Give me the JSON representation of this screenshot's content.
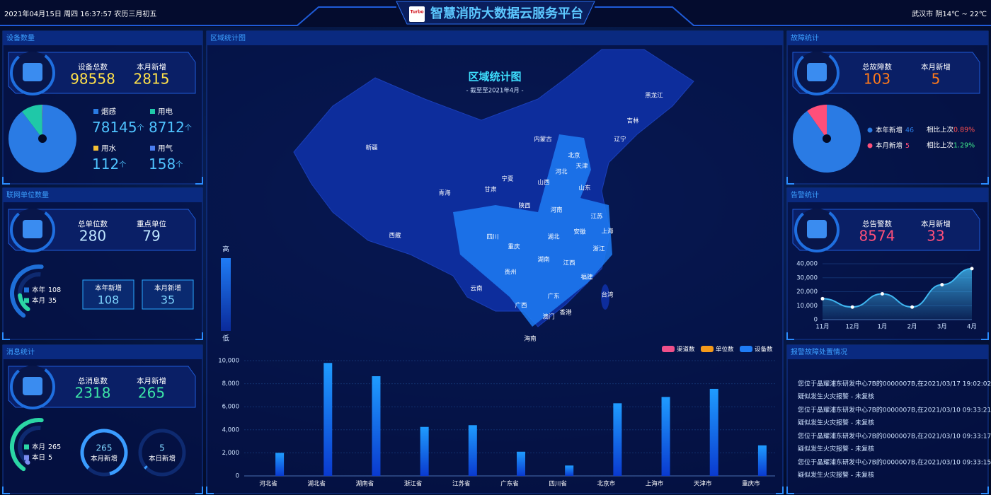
{
  "header": {
    "datetime": "2021年04月15日 周四 16:37:57 农历三月初五",
    "logo": "Turbo",
    "title": "智慧消防大数据云服务平台",
    "weather": "武汉市 阴14℃ ~ 22℃"
  },
  "devices": {
    "title": "设备数量",
    "total_label": "设备总数",
    "total": 98558,
    "new_label": "本月新增",
    "new": 2815,
    "unit": "个",
    "items": [
      {
        "name": "烟感",
        "value": 78145,
        "color": "#2a7be4"
      },
      {
        "name": "用电",
        "value": 8712,
        "color": "#1fc8a8"
      },
      {
        "name": "用水",
        "value": 112,
        "color": "#f5c035"
      },
      {
        "name": "用气",
        "value": 158,
        "color": "#4a7df0"
      }
    ]
  },
  "units": {
    "title": "联网单位数量",
    "total_label": "总单位数",
    "total": 280,
    "key_label": "重点单位",
    "key": 79,
    "gauge": [
      {
        "name": "本年",
        "value": 108,
        "color": "#1e6fd8"
      },
      {
        "name": "本月",
        "value": 35,
        "color": "#2bd6a4"
      }
    ],
    "boxes": [
      {
        "label": "本年新增",
        "value": 108
      },
      {
        "label": "本月新增",
        "value": 35
      }
    ]
  },
  "messages": {
    "title": "消息统计",
    "total_label": "总消息数",
    "total": 2318,
    "new_label": "本月新增",
    "new": 265,
    "gauge": [
      {
        "name": "本月",
        "value": 265,
        "color": "#2bd6a4"
      },
      {
        "name": "本日",
        "value": 5,
        "color": "#7a8cf0"
      }
    ],
    "rings": [
      {
        "value": 265,
        "label": "本月新增"
      },
      {
        "value": 5,
        "label": "本日新增"
      }
    ]
  },
  "map": {
    "title": "区域统计图",
    "subtitle": "- 截至至2021年4月 -",
    "legend_high": "高",
    "legend_low": "低",
    "provinces": [
      "黑龙江",
      "吉林",
      "辽宁",
      "内蒙古",
      "北京",
      "天津",
      "河北",
      "新疆",
      "宁夏",
      "山西",
      "山东",
      "青海",
      "甘肃",
      "陕西",
      "河南",
      "江苏",
      "西藏",
      "四川",
      "湖北",
      "安徽",
      "上海",
      "重庆",
      "浙江",
      "湖南",
      "江西",
      "贵州",
      "福建",
      "云南",
      "广东",
      "台湾",
      "广西",
      "香港",
      "澳门",
      "海南"
    ]
  },
  "faults": {
    "title": "故障统计",
    "total_label": "总故障数",
    "total": 103,
    "new_label": "本月新增",
    "new": 5,
    "items": [
      {
        "name": "本年新增",
        "value": 46,
        "color": "#2a7be4",
        "compare_label": "相比上次",
        "compare": "0.89%",
        "compare_color": "#ff4f4f"
      },
      {
        "name": "本月新增",
        "value": 5,
        "color": "#ff4f7a",
        "compare_label": "相比上次",
        "compare": "1.29%",
        "compare_color": "#3de68a"
      }
    ]
  },
  "alarms": {
    "title": "告警统计",
    "total_label": "总告警数",
    "total": 8574,
    "new_label": "本月新增",
    "new": 33
  },
  "reports": {
    "title": "报警故障处置情况",
    "items": [
      [
        "您位于晶耀浦东研发中心7B的0000007B,在2021/03/17 19:02:02",
        "疑似发生火灾报警 - 未复核"
      ],
      [
        "您位于晶耀浦东研发中心7B的0000007B,在2021/03/10 09:33:21",
        "疑似发生火灾报警 - 未复核"
      ],
      [
        "您位于晶耀浦东研发中心7B的0000007B,在2021/03/10 09:33:17",
        "疑似发生火灾报警 - 未复核"
      ],
      [
        "您位于晶耀浦东研发中心7B的0000007B,在2021/03/10 09:33:15",
        "疑似发生火灾报警 - 未复核"
      ]
    ]
  },
  "chart_data": [
    {
      "type": "bar",
      "categories": [
        "河北省",
        "湖北省",
        "湖南省",
        "浙江省",
        "江苏省",
        "广东省",
        "四川省",
        "北京市",
        "上海市",
        "天津市",
        "重庆市"
      ],
      "series": [
        {
          "name": "渠道数",
          "color": "#f0508a",
          "values": [
            0,
            0,
            0,
            0,
            0,
            0,
            0,
            0,
            0,
            0,
            0
          ]
        },
        {
          "name": "单位数",
          "color": "#f59a1a",
          "values": [
            0,
            0,
            0,
            0,
            0,
            0,
            0,
            0,
            0,
            0,
            0
          ]
        },
        {
          "name": "设备数",
          "color": "#1f7cf5",
          "values": [
            2000,
            9800,
            8650,
            4250,
            4400,
            2100,
            900,
            6300,
            6850,
            7550,
            2650
          ]
        }
      ],
      "ylim": [
        0,
        10000
      ],
      "yticks": [
        0,
        {
          "value": 2000,
          "label": "2,000"
        },
        {
          "value": 4000,
          "label": "4,000"
        },
        {
          "value": 6000,
          "label": "6,000"
        },
        {
          "value": 8000,
          "label": "8,000"
        },
        {
          "value": 10000,
          "label": "10,000"
        }
      ],
      "legend": "top-right",
      "grid": true
    },
    {
      "type": "line",
      "categories": [
        "11月",
        "12月",
        "1月",
        "2月",
        "3月",
        "4月"
      ],
      "values": [
        15000,
        9000,
        18500,
        9000,
        25000,
        36500
      ],
      "color": "#3fb6f0",
      "ylim": [
        0,
        40000
      ],
      "yticks": [
        0,
        {
          "value": 10000,
          "label": "10,000"
        },
        {
          "value": 20000,
          "label": "20,000"
        },
        {
          "value": 30000,
          "label": "30,000"
        },
        {
          "value": 40000,
          "label": "40,000"
        }
      ],
      "area": true,
      "grid": true
    }
  ]
}
